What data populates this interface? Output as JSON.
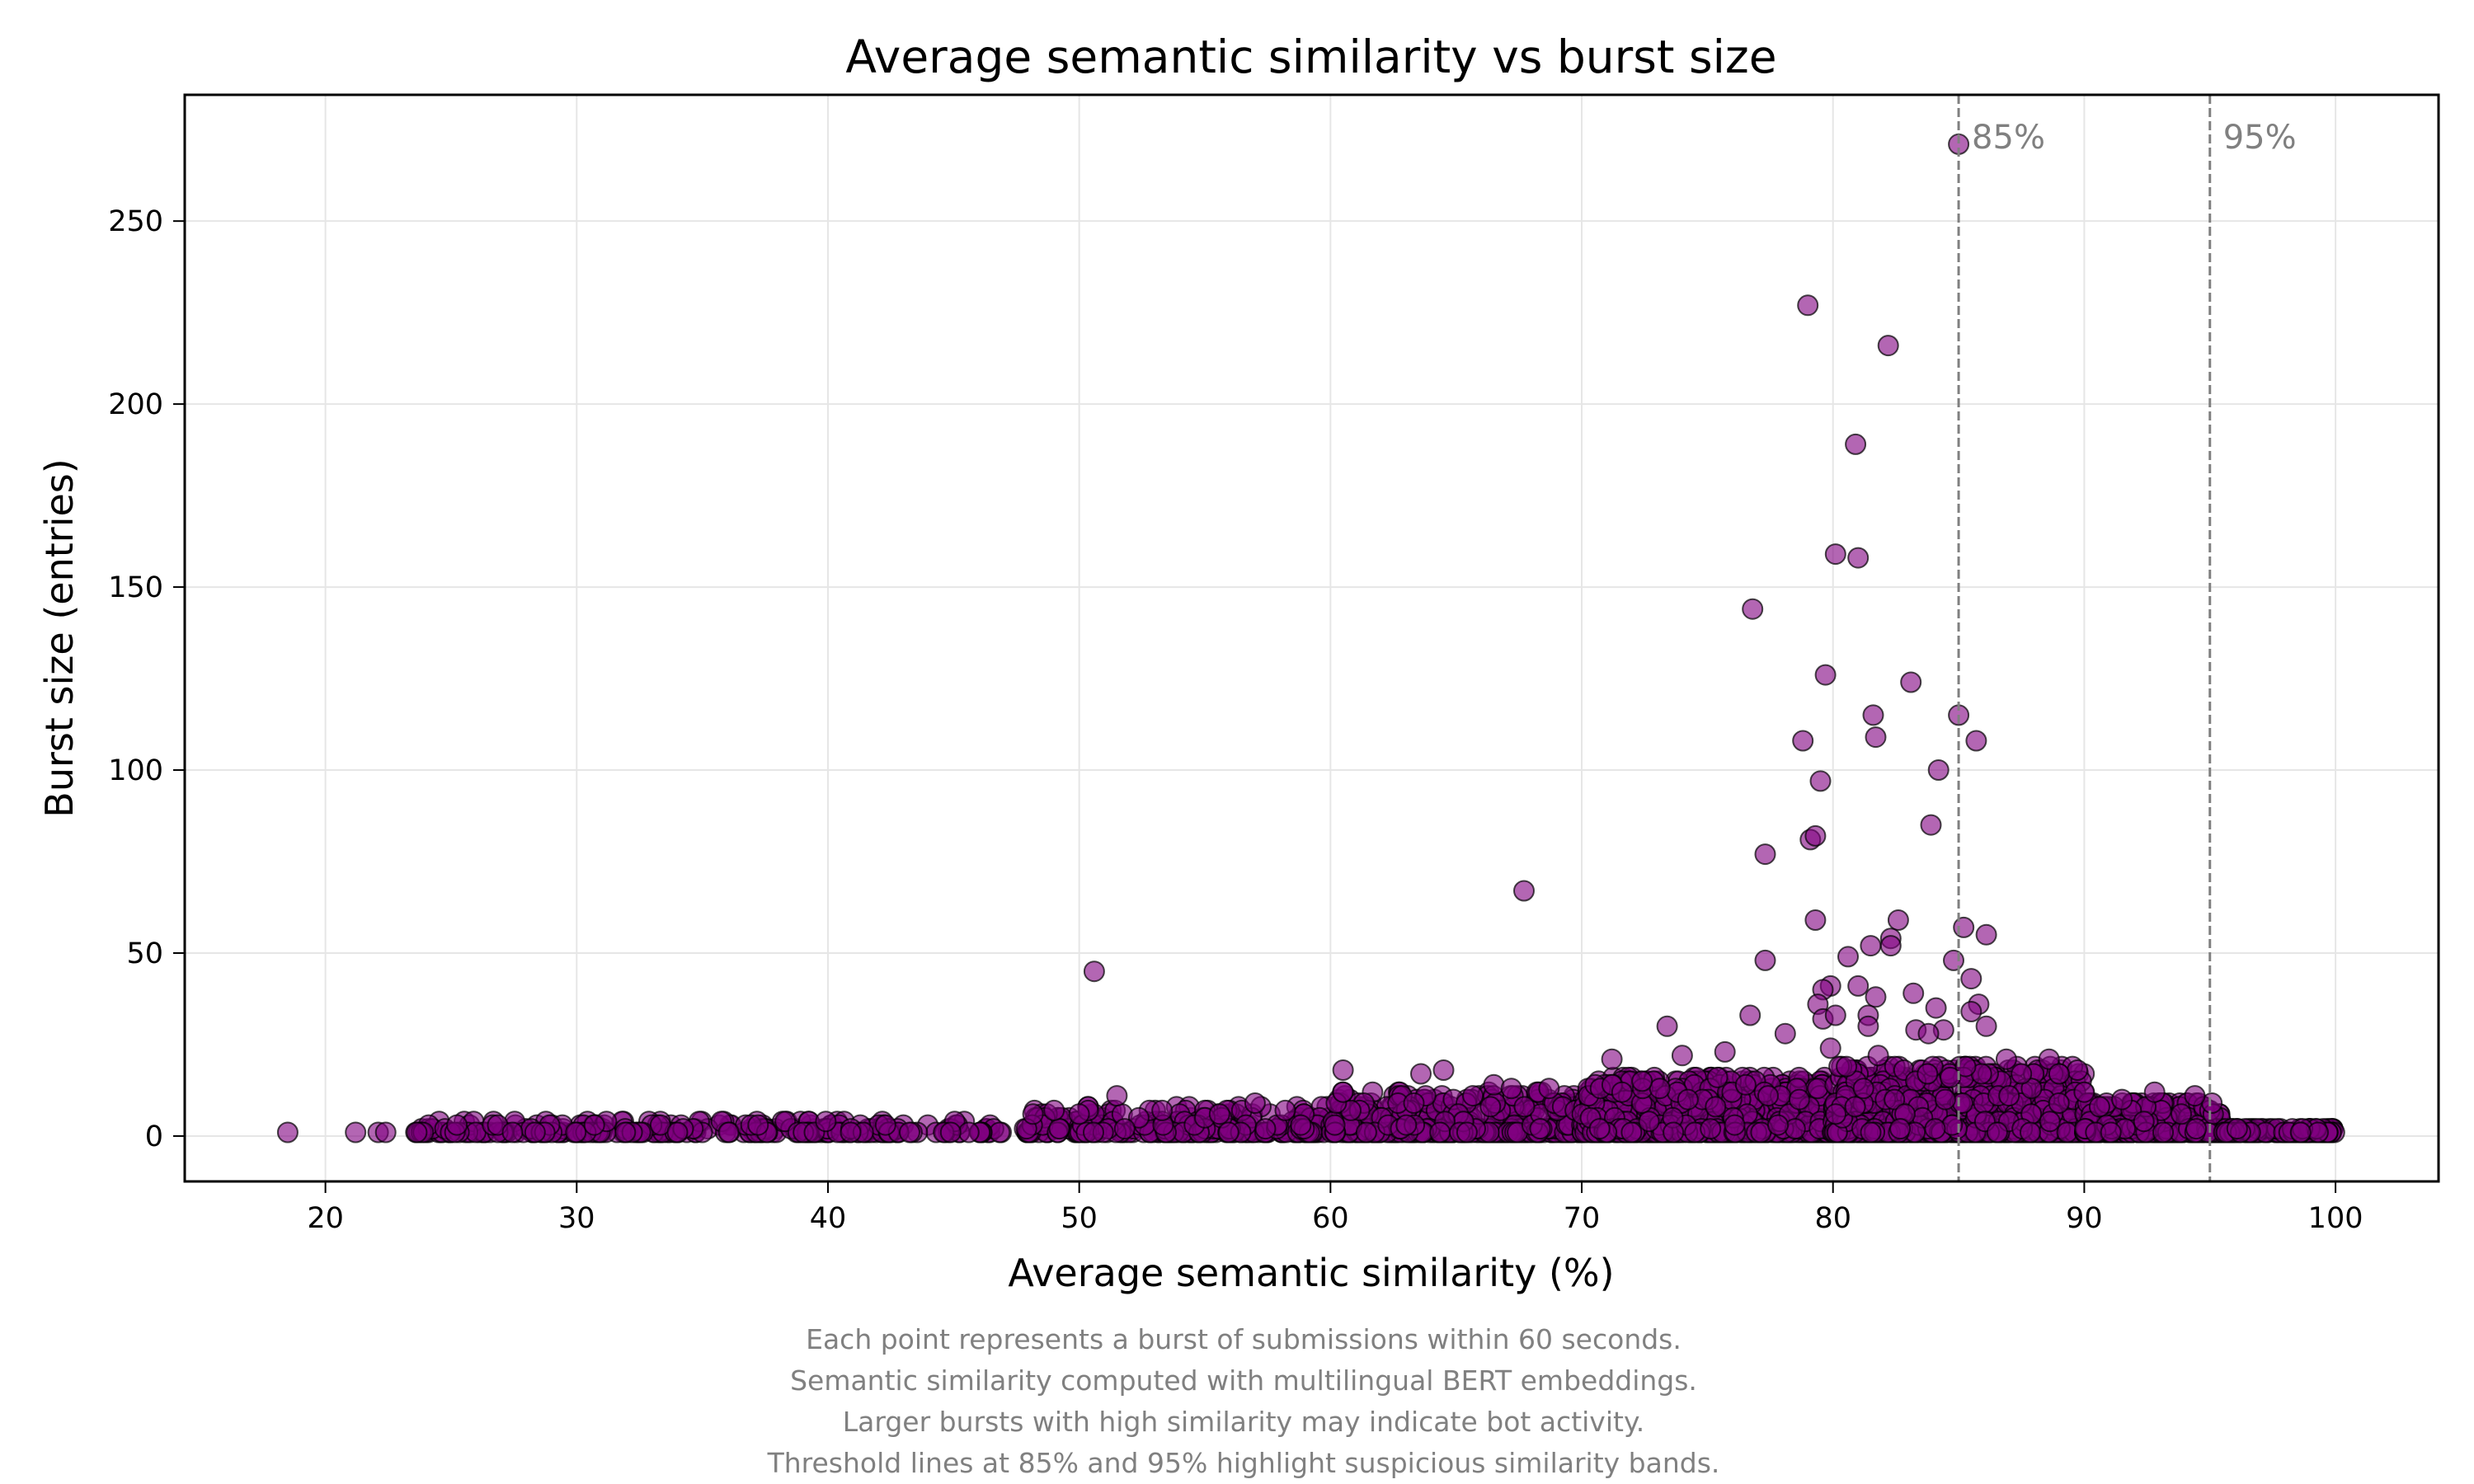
{
  "chart_data": {
    "type": "scatter",
    "title": "Average semantic similarity vs burst size",
    "xlabel": "Average semantic similarity (%)",
    "ylabel": "Burst size (entries)",
    "xlim": [
      14.4,
      104.1
    ],
    "ylim": [
      -12.4,
      284.5
    ],
    "xticks": [
      20,
      30,
      40,
      50,
      60,
      70,
      80,
      90,
      100
    ],
    "yticks": [
      0,
      50,
      100,
      150,
      200,
      250
    ],
    "grid": true,
    "marker_color": "#800080",
    "marker_alpha": 0.6,
    "edge_color": "#000000",
    "thresholds": [
      {
        "x": 85,
        "label": "85%"
      },
      {
        "x": 95,
        "label": "95%"
      }
    ],
    "threshold_color": "#808080",
    "outliers": [
      [
        85.0,
        271
      ],
      [
        79.0,
        227
      ],
      [
        82.2,
        216
      ],
      [
        80.9,
        189
      ],
      [
        80.1,
        159
      ],
      [
        81.0,
        158
      ],
      [
        76.8,
        144
      ],
      [
        79.7,
        126
      ],
      [
        83.1,
        124
      ],
      [
        81.6,
        115
      ],
      [
        85.0,
        115
      ],
      [
        81.7,
        109
      ],
      [
        78.8,
        108
      ],
      [
        85.7,
        108
      ],
      [
        84.2,
        100
      ],
      [
        79.5,
        97
      ],
      [
        83.9,
        85
      ],
      [
        79.1,
        81
      ],
      [
        79.3,
        82
      ],
      [
        77.3,
        77
      ],
      [
        67.7,
        67
      ],
      [
        79.3,
        59
      ],
      [
        82.6,
        59
      ],
      [
        85.2,
        57
      ],
      [
        86.1,
        55
      ],
      [
        82.3,
        54
      ],
      [
        82.3,
        52
      ],
      [
        81.5,
        52
      ],
      [
        80.6,
        49
      ],
      [
        77.3,
        48
      ],
      [
        84.8,
        48
      ],
      [
        50.6,
        45
      ],
      [
        85.5,
        43
      ],
      [
        81.0,
        41
      ],
      [
        79.9,
        41
      ],
      [
        79.6,
        40
      ],
      [
        81.7,
        38
      ],
      [
        83.2,
        39
      ],
      [
        85.8,
        36
      ],
      [
        79.4,
        36
      ],
      [
        84.1,
        35
      ],
      [
        76.7,
        33
      ],
      [
        85.5,
        34
      ],
      [
        81.4,
        33
      ],
      [
        79.6,
        32
      ],
      [
        80.1,
        33
      ],
      [
        73.4,
        30
      ],
      [
        81.4,
        30
      ],
      [
        84.4,
        29
      ],
      [
        83.3,
        29
      ],
      [
        86.1,
        30
      ],
      [
        78.1,
        28
      ],
      [
        83.8,
        28
      ],
      [
        79.9,
        24
      ],
      [
        75.7,
        23
      ],
      [
        74.0,
        22
      ],
      [
        81.8,
        22
      ],
      [
        71.2,
        21
      ],
      [
        88.6,
        21
      ],
      [
        86.9,
        21
      ],
      [
        60.5,
        18
      ],
      [
        64.5,
        18
      ],
      [
        63.6,
        17
      ],
      [
        66.5,
        14
      ],
      [
        51.5,
        11
      ],
      [
        60.5,
        12
      ],
      [
        92.8,
        12
      ],
      [
        94.4,
        11
      ],
      [
        57.0,
        9
      ],
      [
        58.2,
        7
      ],
      [
        53.3,
        7
      ],
      [
        49.0,
        7
      ],
      [
        67.2,
        13
      ],
      [
        68.7,
        13
      ],
      [
        71.6,
        12
      ],
      [
        72.4,
        15
      ],
      [
        75.4,
        16
      ],
      [
        87.5,
        17
      ],
      [
        89.0,
        17
      ],
      [
        90.0,
        12
      ],
      [
        91.5,
        10
      ]
    ],
    "sparse_low": [
      18.5,
      21.2,
      22.1,
      22.4,
      23.6,
      24.1,
      24.6,
      24.9,
      26.3,
      27.1,
      27.6,
      28.3
    ],
    "dense_bands": [
      {
        "x_range": [
          23.5,
          47.0
        ],
        "max_y": 4,
        "count": 260
      },
      {
        "x_range": [
          47.8,
          60.0
        ],
        "max_y": 8,
        "count": 260
      },
      {
        "x_range": [
          60.0,
          70.0
        ],
        "max_y": 12,
        "count": 420
      },
      {
        "x_range": [
          70.0,
          80.0
        ],
        "max_y": 16,
        "count": 700
      },
      {
        "x_range": [
          80.0,
          90.0
        ],
        "max_y": 19,
        "count": 900
      },
      {
        "x_range": [
          90.0,
          95.5
        ],
        "max_y": 9,
        "count": 340
      },
      {
        "x_range": [
          95.5,
          100.0
        ],
        "max_y": 2,
        "count": 120
      }
    ],
    "annotation_lines": [
      "Each point represents a burst of submissions within 60 seconds.",
      "Semantic similarity computed with multilingual BERT embeddings.",
      "Larger bursts with high similarity may indicate bot activity.",
      "Threshold lines at 85% and 95% highlight suspicious similarity bands."
    ]
  }
}
